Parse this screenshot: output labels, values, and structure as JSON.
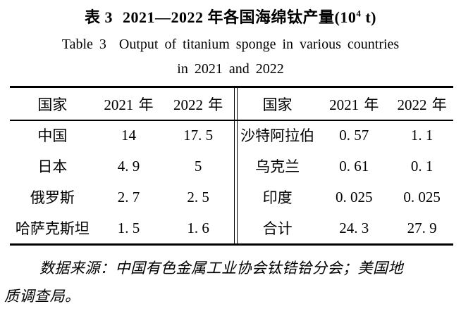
{
  "caption": {
    "zh_label": "表 3",
    "zh_main": "2021—2022 年各国海绵钛产量(10",
    "zh_sup": "4",
    "zh_unit": " t)",
    "en_label": "Table 3",
    "en_line1": "Output of titanium sponge in various countries",
    "en_line2": "in 2021 and 2022"
  },
  "table": {
    "left": {
      "headers": [
        "国家",
        "2021 年",
        "2022 年"
      ],
      "rows": [
        [
          "中国",
          "14",
          "17. 5"
        ],
        [
          "日本",
          "4. 9",
          "5"
        ],
        [
          "俄罗斯",
          "2. 7",
          "2. 5"
        ],
        [
          "哈萨克斯坦",
          "1. 5",
          "1. 6"
        ]
      ]
    },
    "right": {
      "headers": [
        "国家",
        "2021 年",
        "2022 年"
      ],
      "rows": [
        [
          "沙特阿拉伯",
          "0. 57",
          "1. 1"
        ],
        [
          "乌克兰",
          "0. 61",
          "0. 1"
        ],
        [
          "印度",
          "0. 025",
          "0. 025"
        ],
        [
          "合计",
          "24. 3",
          "27. 9"
        ]
      ]
    }
  },
  "footnote": {
    "line1": "数据来源：中国有色金属工业协会钛锆铪分会；美国地",
    "line2": "质调查局。"
  }
}
